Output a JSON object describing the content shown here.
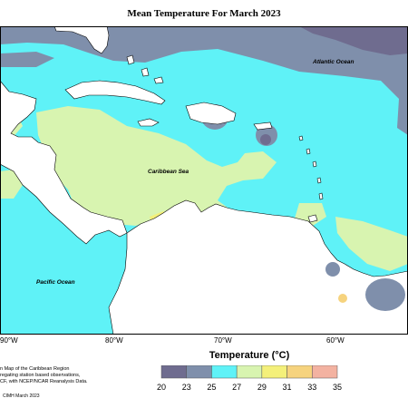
{
  "title": "Mean Temperature For March 2023",
  "labels": {
    "atlantic": "Atlantic Ocean",
    "caribbean": "Caribbean Sea",
    "pacific": "Pacific Ocean"
  },
  "longitudes": [
    "90°W",
    "80°W",
    "70°W",
    "60°W"
  ],
  "legend": {
    "title": "Temperature (°C)",
    "ticks": [
      "20",
      "23",
      "25",
      "27",
      "29",
      "31",
      "33",
      "35"
    ],
    "colors": [
      "#6f6c8f",
      "#7f8fab",
      "#5ff2f7",
      "#d8f4b0",
      "#f4f07a",
      "#f6d37e",
      "#f3b2a1"
    ]
  },
  "description": {
    "line1": "n Map of the Caribbean Region",
    "line2": "regating station based observations,",
    "line3": "CF, with NCEP/NCAR Reanalysis Data."
  },
  "credit": "CIMH March 2023"
}
